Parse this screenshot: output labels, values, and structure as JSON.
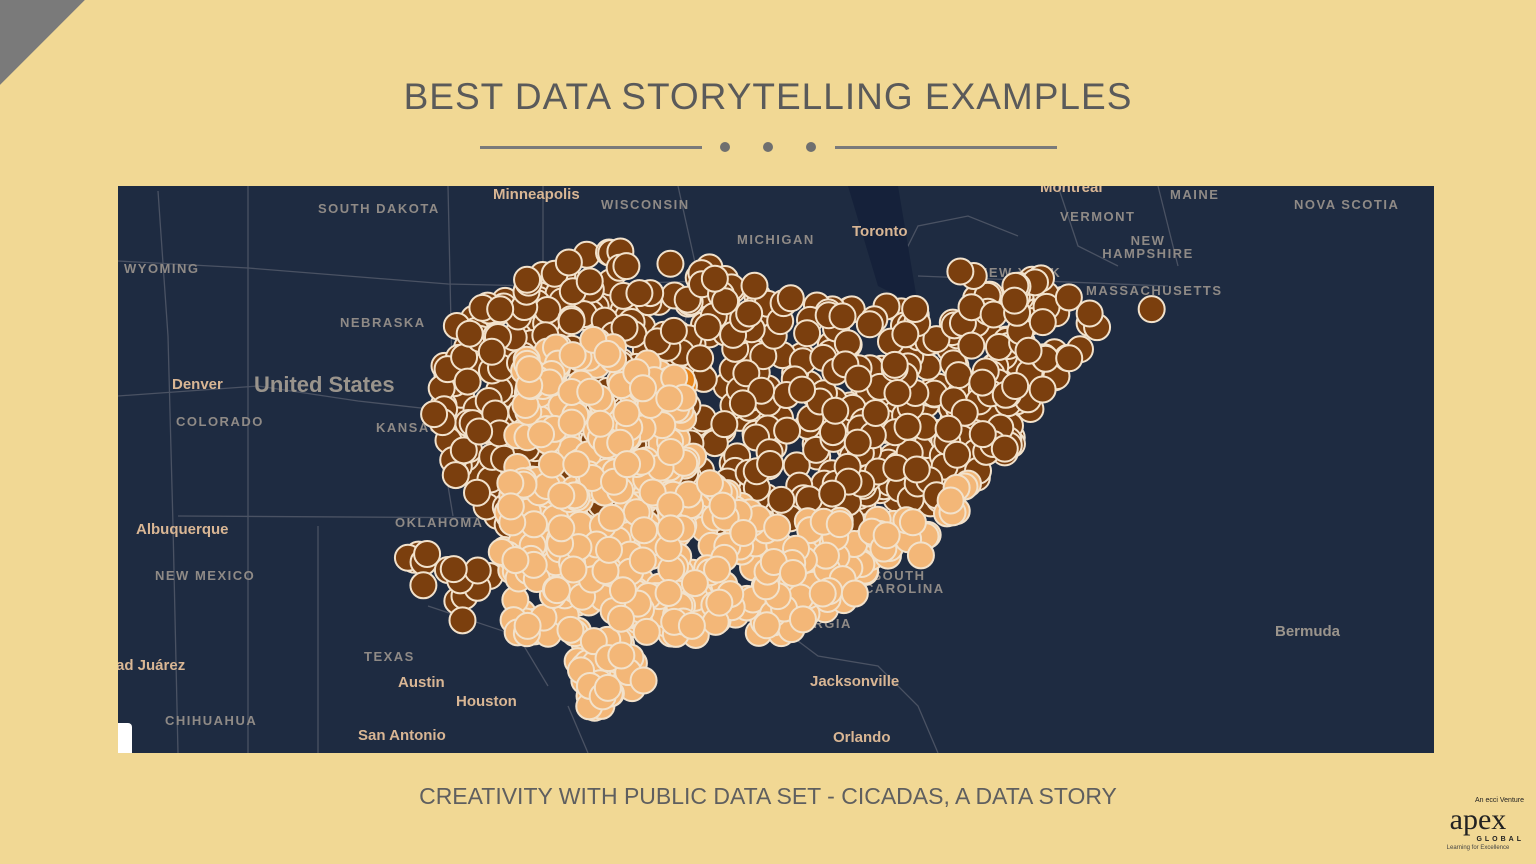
{
  "slide": {
    "title": "BEST DATA STORYTELLING EXAMPLES",
    "subtitle": "CREATIVITY WITH PUBLIC DATA SET - CICADAS, A DATA STORY"
  },
  "map": {
    "country_label": "United States",
    "regions": [
      "SOUTH DAKOTA",
      "WISCONSIN",
      "WYOMING",
      "NEBRASKA",
      "COLORADO",
      "KANSAS",
      "OKLAHOMA",
      "NEW MEXICO",
      "TEXAS",
      "CHIHUAHUA",
      "MICHIGAN",
      "VERMONT",
      "MAINE",
      "NOVA SCOTIA",
      "NEW HAMPSHIRE",
      "MASSACHUSETTS",
      "NEW YORK",
      "GEORGIA",
      "SOUTH CAROLINA"
    ],
    "cities": [
      "Minneapolis",
      "Denver",
      "Albuquerque",
      "ad Juárez",
      "Austin",
      "Houston",
      "San Antonio",
      "Toronto",
      "Montreal",
      "Jacksonville",
      "Orlando",
      "Bermuda"
    ],
    "colors": {
      "background": "#1e2b41",
      "brood_dark": "#7b3f0e",
      "brood_light": "#f3b778",
      "brood_orange": "#e8861c",
      "marker_stroke": "#f2e2cc"
    }
  },
  "logo": {
    "top": "An ecci Venture",
    "name": "apex",
    "sub": "GLOBAL",
    "tagline": "Learning for Excellence"
  }
}
